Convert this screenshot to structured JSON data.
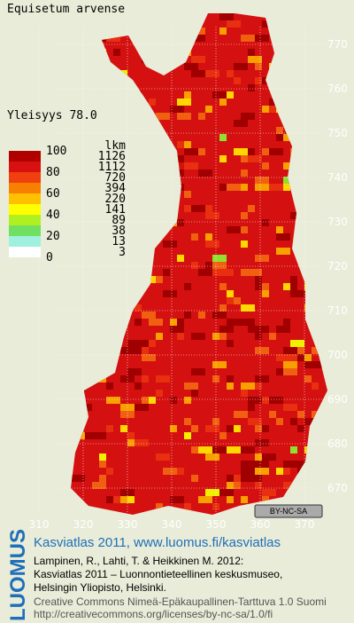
{
  "title": "Equisetum arvense",
  "frequency": "Yleisyys 78.0",
  "legend": {
    "scale": [
      "100",
      "80",
      "60",
      "40",
      "20",
      "0"
    ],
    "count_header": "lkm",
    "counts": [
      "1126",
      "1112",
      "720",
      "394",
      "220",
      "141",
      "89",
      "38",
      "13",
      "3"
    ]
  },
  "grid": {
    "northing": [
      "770",
      "760",
      "750",
      "740",
      "730",
      "720",
      "710",
      "700",
      "690",
      "680",
      "670"
    ],
    "easting": [
      "310",
      "320",
      "330",
      "340",
      "350",
      "360",
      "370"
    ]
  },
  "badge": "BY-NC-SA",
  "footer": {
    "logo": "LUOMUS",
    "link": "Kasviatlas 2011, www.luomus.fi/kasviatlas",
    "citation": [
      "Lampinen, R., Lahti, T. & Heikkinen M. 2012:",
      "Kasviatlas 2011 – Luonnontieteellinen keskusmuseo,",
      "Helsingin Yliopisto, Helsinki."
    ],
    "license": [
      "Creative Commons Nimeä-Epäkaupallinen-Tarttuva 1.0 Suomi",
      "http://creativecommons.org/licenses/by-nc-sa/1.0/fi"
    ]
  }
}
